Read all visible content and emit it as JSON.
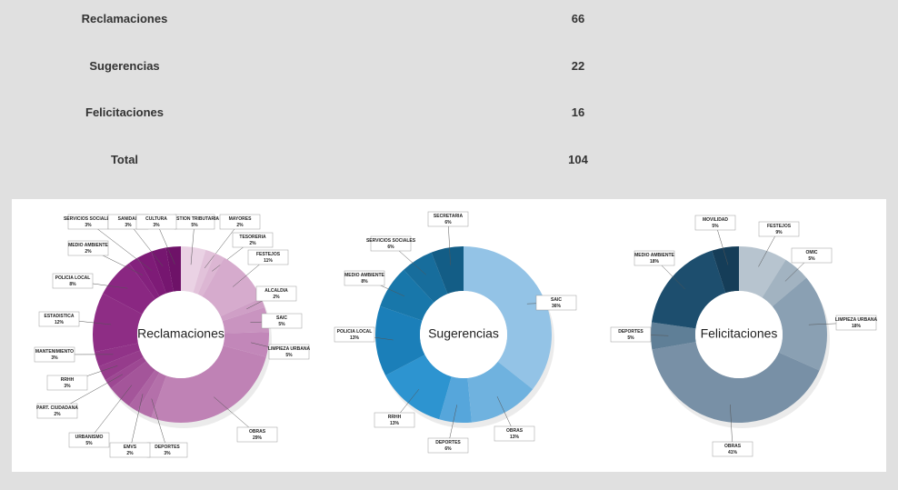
{
  "table": {
    "rows": [
      [
        "Reclamaciones",
        66
      ],
      [
        "Sugerencias",
        22
      ],
      [
        "Felicitaciones",
        16
      ],
      [
        "Total",
        104
      ]
    ]
  },
  "chart_data": [
    {
      "type": "donut",
      "title": "Reclamaciones",
      "categories": [
        "GESTION TRIBUTARIA",
        "MAYORES",
        "TESORERIA",
        "FESTEJOS",
        "ALCALDIA",
        "SAIC",
        "LIMPIEZA URBANA",
        "OBRAS",
        "DEPORTES",
        "EMVS",
        "URBANISMO",
        "PART. CIUDADANA",
        "RRHH",
        "MANTENIMIENTO",
        "ESTADISTICA",
        "POLICIA LOCAL",
        "MEDIO AMBIENTE",
        "SERVICIOS SOCIALES",
        "SANIDAD",
        "CULTURA"
      ],
      "values": [
        5,
        2,
        2,
        11,
        2,
        5,
        5,
        29,
        3,
        2,
        5,
        2,
        3,
        3,
        12,
        8,
        2,
        3,
        3,
        3
      ],
      "value_labels": [
        "5%",
        "2%",
        "2%",
        "11%",
        "2%",
        "5%",
        "5%",
        "29%",
        "3%",
        "2%",
        "5%",
        "2%",
        "3%",
        "3%",
        "12%",
        "8%",
        "2%",
        "3%",
        "3%",
        "3%"
      ],
      "colors": [
        "#ead2e4",
        "#e2c2da",
        "#dcb6d3",
        "#d6abcd",
        "#cf9fc6",
        "#c994c0",
        "#c287b9",
        "#bf82b5",
        "#b470aa",
        "#ad64a3",
        "#a4559a",
        "#9d4893",
        "#963c8c",
        "#913388",
        "#8e2d85",
        "#8a2782",
        "#84217d",
        "#7e1b77",
        "#761670",
        "#6e1268"
      ]
    },
    {
      "type": "donut",
      "title": "Sugerencias",
      "categories": [
        "SAIC",
        "OBRAS",
        "DEPORTES",
        "RRHH",
        "POLICIA LOCAL",
        "MEDIO AMBIENTE",
        "SERVICIOS SOCIALES",
        "SECRETARIA"
      ],
      "values": [
        36,
        13,
        6,
        13,
        13,
        8,
        6,
        6
      ],
      "value_labels": [
        "36%",
        "13%",
        "6%",
        "13%",
        "13%",
        "8%",
        "6%",
        "6%"
      ],
      "colors": [
        "#93c3e6",
        "#6fb2df",
        "#56a6db",
        "#2d94d0",
        "#1b7fb9",
        "#1877aa",
        "#176d9c",
        "#135d86"
      ]
    },
    {
      "type": "donut",
      "title": "Felicitaciones",
      "categories": [
        "FESTEJOS",
        "OMIC",
        "LIMPIEZA URBANA",
        "OBRAS",
        "DEPORTES",
        "MEDIO AMBIENTE",
        "MOVILIDAD"
      ],
      "values": [
        9,
        5,
        18,
        41,
        5,
        18,
        5
      ],
      "value_labels": [
        "9%",
        "5%",
        "18%",
        "41%",
        "5%",
        "18%",
        "5%"
      ],
      "colors": [
        "#b7c4cf",
        "#a2b3c1",
        "#8aa0b3",
        "#7890a6",
        "#5f7f97",
        "#1d4e6e",
        "#153d58"
      ]
    }
  ]
}
